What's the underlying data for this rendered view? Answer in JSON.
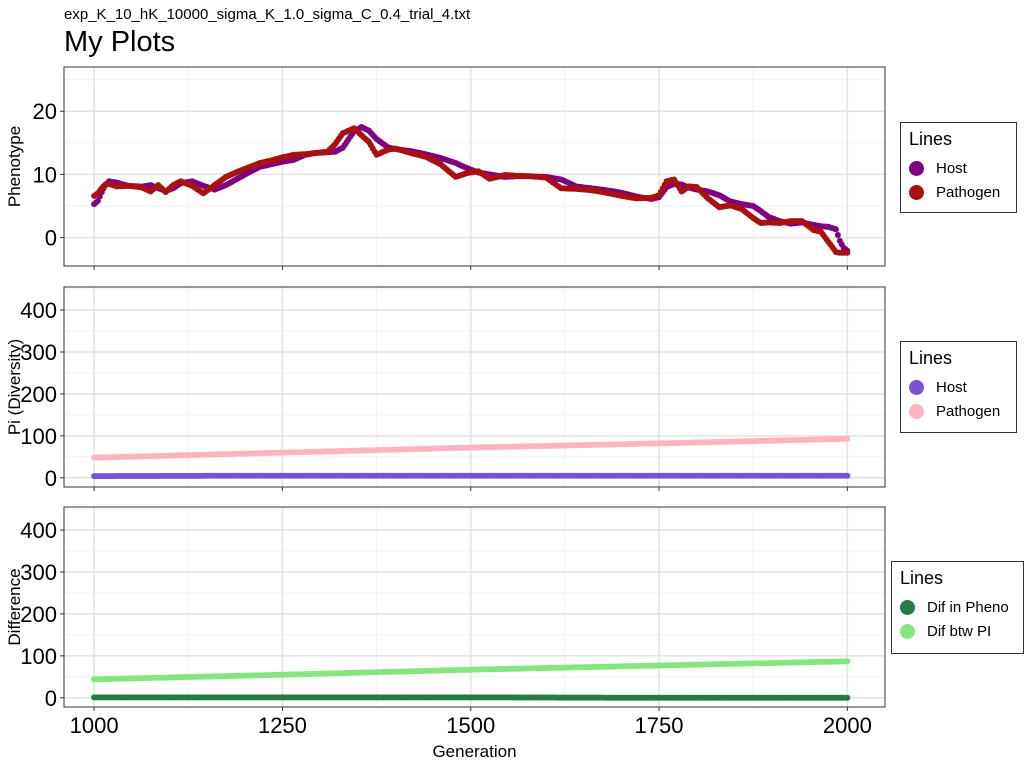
{
  "header": {
    "subtitle": "exp_K_10_hK_10000_sigma_K_1.0_sigma_C_0.4_trial_4.txt",
    "title": "My Plots"
  },
  "chart_data": [
    {
      "type": "scatter",
      "ylabel": "Phenotype",
      "xlim": [
        960,
        2050
      ],
      "ylim": [
        -4.5,
        27
      ],
      "x_ticks": [
        1000,
        1250,
        1500,
        1750,
        2000
      ],
      "y_ticks": [
        0,
        10,
        20
      ],
      "grid": true,
      "legend": {
        "title": "Lines",
        "position": "right",
        "entries": [
          {
            "label": "Host",
            "color": "#800080"
          },
          {
            "label": "Pathogen",
            "color": "#AA1111"
          }
        ]
      },
      "series": [
        {
          "name": "Host",
          "color": "#800080",
          "x": [
            1000,
            1005,
            1010,
            1015,
            1020,
            1030,
            1045,
            1060,
            1075,
            1085,
            1095,
            1105,
            1115,
            1130,
            1145,
            1160,
            1175,
            1190,
            1205,
            1220,
            1235,
            1250,
            1265,
            1280,
            1295,
            1310,
            1320,
            1330,
            1345,
            1355,
            1365,
            1375,
            1390,
            1400,
            1420,
            1440,
            1460,
            1480,
            1495,
            1510,
            1525,
            1545,
            1560,
            1580,
            1600,
            1620,
            1640,
            1660,
            1680,
            1700,
            1720,
            1740,
            1750,
            1760,
            1770,
            1780,
            1790,
            1800,
            1815,
            1830,
            1845,
            1860,
            1875,
            1885,
            1895,
            1910,
            1925,
            1940,
            1955,
            1965,
            1975,
            1985,
            1990,
            1995,
            2000
          ],
          "y": [
            5.3,
            5.8,
            7.2,
            8.3,
            8.9,
            8.7,
            8.2,
            8.0,
            8.3,
            7.8,
            7.4,
            7.8,
            8.6,
            8.9,
            8.2,
            7.6,
            8.3,
            9.3,
            10.3,
            11.2,
            11.6,
            12.0,
            12.3,
            13.1,
            13.4,
            13.5,
            13.6,
            14.2,
            16.8,
            17.5,
            16.9,
            15.6,
            14.3,
            14.0,
            13.7,
            13.2,
            12.6,
            11.8,
            11.0,
            10.3,
            10.0,
            9.6,
            9.7,
            9.7,
            9.6,
            9.2,
            8.1,
            7.8,
            7.5,
            7.1,
            6.5,
            6.1,
            6.4,
            8.0,
            8.5,
            8.4,
            7.9,
            7.6,
            7.3,
            6.7,
            5.7,
            5.3,
            5.0,
            4.2,
            3.3,
            2.6,
            2.2,
            2.4,
            2.0,
            1.8,
            1.7,
            1.3,
            -0.5,
            -1.6,
            -2.1
          ]
        },
        {
          "name": "Pathogen",
          "color": "#AA1111",
          "x": [
            1000,
            1005,
            1010,
            1015,
            1020,
            1030,
            1045,
            1060,
            1075,
            1085,
            1095,
            1105,
            1115,
            1130,
            1145,
            1160,
            1175,
            1190,
            1205,
            1220,
            1235,
            1250,
            1265,
            1280,
            1295,
            1310,
            1320,
            1330,
            1345,
            1355,
            1365,
            1375,
            1390,
            1400,
            1420,
            1440,
            1460,
            1480,
            1495,
            1510,
            1525,
            1545,
            1560,
            1580,
            1600,
            1620,
            1640,
            1660,
            1680,
            1700,
            1720,
            1740,
            1750,
            1760,
            1770,
            1780,
            1790,
            1800,
            1815,
            1830,
            1845,
            1860,
            1875,
            1885,
            1895,
            1910,
            1925,
            1940,
            1955,
            1965,
            1975,
            1985,
            1990,
            1995,
            2000
          ],
          "y": [
            6.6,
            7.0,
            7.8,
            8.4,
            8.5,
            8.1,
            8.2,
            8.1,
            7.3,
            8.3,
            7.2,
            8.3,
            8.9,
            8.2,
            7.0,
            8.3,
            9.6,
            10.4,
            11.1,
            11.8,
            12.2,
            12.7,
            13.1,
            13.2,
            13.4,
            13.6,
            14.8,
            16.5,
            17.3,
            16.2,
            15.1,
            13.1,
            13.9,
            14.1,
            13.4,
            12.8,
            11.6,
            9.6,
            10.2,
            10.5,
            9.3,
            9.9,
            9.8,
            9.7,
            9.5,
            7.8,
            7.7,
            7.5,
            7.1,
            6.6,
            6.2,
            6.3,
            6.7,
            8.9,
            9.2,
            7.3,
            8.1,
            8.0,
            6.2,
            4.8,
            5.1,
            4.5,
            3.1,
            2.3,
            2.4,
            2.3,
            2.6,
            2.6,
            1.2,
            0.9,
            -0.7,
            -2.3,
            -2.4,
            -2.4,
            -2.4
          ]
        }
      ]
    },
    {
      "type": "scatter",
      "ylabel": "Pi (Diversity)",
      "xlim": [
        960,
        2050
      ],
      "ylim": [
        -22,
        455
      ],
      "x_ticks": [
        1000,
        1250,
        1500,
        1750,
        2000
      ],
      "y_ticks": [
        0,
        100,
        200,
        300,
        400
      ],
      "grid": true,
      "legend": {
        "title": "Lines",
        "position": "right",
        "entries": [
          {
            "label": "Host",
            "color": "#7B52D4"
          },
          {
            "label": "Pathogen",
            "color": "#FFB3C1"
          }
        ]
      },
      "series": [
        {
          "name": "Host",
          "color": "#7B52D4",
          "x": [
            1000,
            1250,
            1500,
            1750,
            2000
          ],
          "y": [
            4,
            5,
            5,
            5,
            5
          ]
        },
        {
          "name": "Pathogen",
          "color": "#FFB3C1",
          "x": [
            1000,
            1250,
            1500,
            1750,
            2000
          ],
          "y": [
            48,
            60,
            72,
            82,
            93
          ]
        }
      ]
    },
    {
      "type": "scatter",
      "ylabel": "Difference",
      "xlabel": "Generation",
      "xlim": [
        960,
        2050
      ],
      "ylim": [
        -22,
        455
      ],
      "x_ticks": [
        1000,
        1250,
        1500,
        1750,
        2000
      ],
      "y_ticks": [
        0,
        100,
        200,
        300,
        400
      ],
      "grid": true,
      "legend": {
        "title": "Lines",
        "position": "right",
        "entries": [
          {
            "label": "Dif in Pheno",
            "color": "#257A45"
          },
          {
            "label": "Dif btw PI",
            "color": "#86E67E"
          }
        ]
      },
      "series": [
        {
          "name": "Dif in Pheno",
          "color": "#257A45",
          "x": [
            1000,
            1250,
            1500,
            1750,
            2000
          ],
          "y": [
            1,
            1,
            1,
            0,
            0
          ]
        },
        {
          "name": "Dif btw PI",
          "color": "#86E67E",
          "x": [
            1000,
            1250,
            1500,
            1750,
            2000
          ],
          "y": [
            44,
            55,
            67,
            77,
            87
          ]
        }
      ]
    }
  ]
}
